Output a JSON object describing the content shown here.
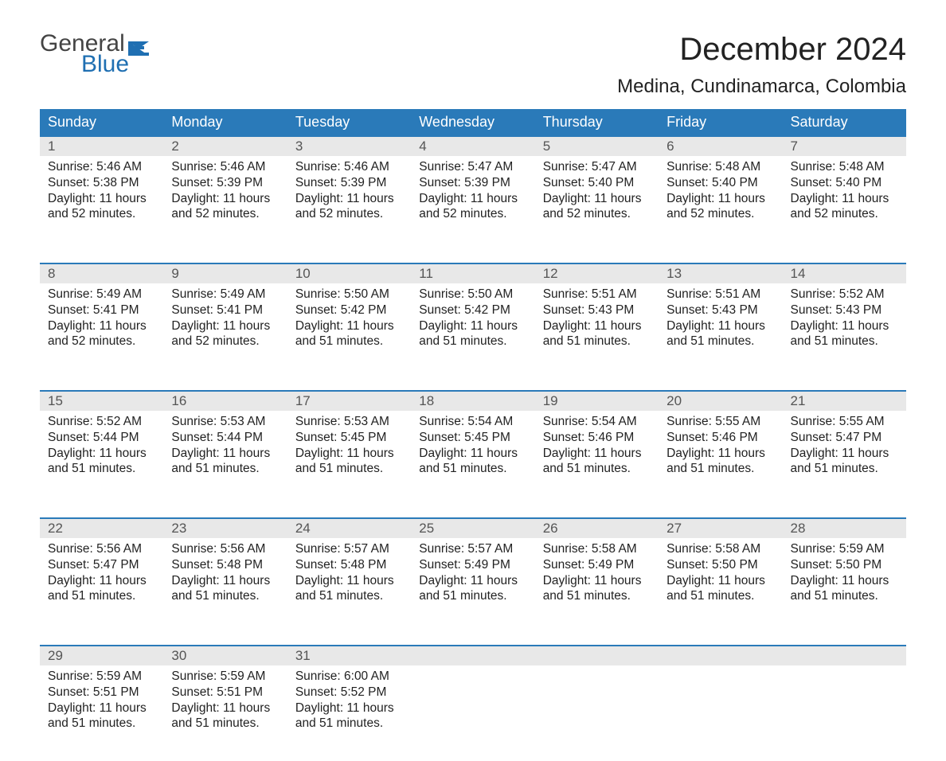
{
  "logo": {
    "text_general": "General",
    "text_blue": "Blue",
    "flag_color": "#1f6fb2"
  },
  "title": "December 2024",
  "location": "Medina, Cundinamarca, Colombia",
  "colors": {
    "header_bg": "#2a7ab9",
    "header_text": "#ffffff",
    "daynum_bg": "#e8e8e8",
    "daynum_text": "#555555",
    "body_text": "#222222",
    "week_border": "#2a7ab9",
    "page_bg": "#ffffff",
    "logo_gray": "#444444",
    "logo_blue": "#1f6fb2"
  },
  "typography": {
    "title_fontsize": 40,
    "location_fontsize": 24,
    "dow_fontsize": 18,
    "daynum_fontsize": 17,
    "body_fontsize": 15.5,
    "logo_fontsize": 30
  },
  "days_of_week": [
    "Sunday",
    "Monday",
    "Tuesday",
    "Wednesday",
    "Thursday",
    "Friday",
    "Saturday"
  ],
  "weeks": [
    [
      {
        "num": "1",
        "sunrise": "Sunrise: 5:46 AM",
        "sunset": "Sunset: 5:38 PM",
        "daylight1": "Daylight: 11 hours",
        "daylight2": "and 52 minutes."
      },
      {
        "num": "2",
        "sunrise": "Sunrise: 5:46 AM",
        "sunset": "Sunset: 5:39 PM",
        "daylight1": "Daylight: 11 hours",
        "daylight2": "and 52 minutes."
      },
      {
        "num": "3",
        "sunrise": "Sunrise: 5:46 AM",
        "sunset": "Sunset: 5:39 PM",
        "daylight1": "Daylight: 11 hours",
        "daylight2": "and 52 minutes."
      },
      {
        "num": "4",
        "sunrise": "Sunrise: 5:47 AM",
        "sunset": "Sunset: 5:39 PM",
        "daylight1": "Daylight: 11 hours",
        "daylight2": "and 52 minutes."
      },
      {
        "num": "5",
        "sunrise": "Sunrise: 5:47 AM",
        "sunset": "Sunset: 5:40 PM",
        "daylight1": "Daylight: 11 hours",
        "daylight2": "and 52 minutes."
      },
      {
        "num": "6",
        "sunrise": "Sunrise: 5:48 AM",
        "sunset": "Sunset: 5:40 PM",
        "daylight1": "Daylight: 11 hours",
        "daylight2": "and 52 minutes."
      },
      {
        "num": "7",
        "sunrise": "Sunrise: 5:48 AM",
        "sunset": "Sunset: 5:40 PM",
        "daylight1": "Daylight: 11 hours",
        "daylight2": "and 52 minutes."
      }
    ],
    [
      {
        "num": "8",
        "sunrise": "Sunrise: 5:49 AM",
        "sunset": "Sunset: 5:41 PM",
        "daylight1": "Daylight: 11 hours",
        "daylight2": "and 52 minutes."
      },
      {
        "num": "9",
        "sunrise": "Sunrise: 5:49 AM",
        "sunset": "Sunset: 5:41 PM",
        "daylight1": "Daylight: 11 hours",
        "daylight2": "and 52 minutes."
      },
      {
        "num": "10",
        "sunrise": "Sunrise: 5:50 AM",
        "sunset": "Sunset: 5:42 PM",
        "daylight1": "Daylight: 11 hours",
        "daylight2": "and 51 minutes."
      },
      {
        "num": "11",
        "sunrise": "Sunrise: 5:50 AM",
        "sunset": "Sunset: 5:42 PM",
        "daylight1": "Daylight: 11 hours",
        "daylight2": "and 51 minutes."
      },
      {
        "num": "12",
        "sunrise": "Sunrise: 5:51 AM",
        "sunset": "Sunset: 5:43 PM",
        "daylight1": "Daylight: 11 hours",
        "daylight2": "and 51 minutes."
      },
      {
        "num": "13",
        "sunrise": "Sunrise: 5:51 AM",
        "sunset": "Sunset: 5:43 PM",
        "daylight1": "Daylight: 11 hours",
        "daylight2": "and 51 minutes."
      },
      {
        "num": "14",
        "sunrise": "Sunrise: 5:52 AM",
        "sunset": "Sunset: 5:43 PM",
        "daylight1": "Daylight: 11 hours",
        "daylight2": "and 51 minutes."
      }
    ],
    [
      {
        "num": "15",
        "sunrise": "Sunrise: 5:52 AM",
        "sunset": "Sunset: 5:44 PM",
        "daylight1": "Daylight: 11 hours",
        "daylight2": "and 51 minutes."
      },
      {
        "num": "16",
        "sunrise": "Sunrise: 5:53 AM",
        "sunset": "Sunset: 5:44 PM",
        "daylight1": "Daylight: 11 hours",
        "daylight2": "and 51 minutes."
      },
      {
        "num": "17",
        "sunrise": "Sunrise: 5:53 AM",
        "sunset": "Sunset: 5:45 PM",
        "daylight1": "Daylight: 11 hours",
        "daylight2": "and 51 minutes."
      },
      {
        "num": "18",
        "sunrise": "Sunrise: 5:54 AM",
        "sunset": "Sunset: 5:45 PM",
        "daylight1": "Daylight: 11 hours",
        "daylight2": "and 51 minutes."
      },
      {
        "num": "19",
        "sunrise": "Sunrise: 5:54 AM",
        "sunset": "Sunset: 5:46 PM",
        "daylight1": "Daylight: 11 hours",
        "daylight2": "and 51 minutes."
      },
      {
        "num": "20",
        "sunrise": "Sunrise: 5:55 AM",
        "sunset": "Sunset: 5:46 PM",
        "daylight1": "Daylight: 11 hours",
        "daylight2": "and 51 minutes."
      },
      {
        "num": "21",
        "sunrise": "Sunrise: 5:55 AM",
        "sunset": "Sunset: 5:47 PM",
        "daylight1": "Daylight: 11 hours",
        "daylight2": "and 51 minutes."
      }
    ],
    [
      {
        "num": "22",
        "sunrise": "Sunrise: 5:56 AM",
        "sunset": "Sunset: 5:47 PM",
        "daylight1": "Daylight: 11 hours",
        "daylight2": "and 51 minutes."
      },
      {
        "num": "23",
        "sunrise": "Sunrise: 5:56 AM",
        "sunset": "Sunset: 5:48 PM",
        "daylight1": "Daylight: 11 hours",
        "daylight2": "and 51 minutes."
      },
      {
        "num": "24",
        "sunrise": "Sunrise: 5:57 AM",
        "sunset": "Sunset: 5:48 PM",
        "daylight1": "Daylight: 11 hours",
        "daylight2": "and 51 minutes."
      },
      {
        "num": "25",
        "sunrise": "Sunrise: 5:57 AM",
        "sunset": "Sunset: 5:49 PM",
        "daylight1": "Daylight: 11 hours",
        "daylight2": "and 51 minutes."
      },
      {
        "num": "26",
        "sunrise": "Sunrise: 5:58 AM",
        "sunset": "Sunset: 5:49 PM",
        "daylight1": "Daylight: 11 hours",
        "daylight2": "and 51 minutes."
      },
      {
        "num": "27",
        "sunrise": "Sunrise: 5:58 AM",
        "sunset": "Sunset: 5:50 PM",
        "daylight1": "Daylight: 11 hours",
        "daylight2": "and 51 minutes."
      },
      {
        "num": "28",
        "sunrise": "Sunrise: 5:59 AM",
        "sunset": "Sunset: 5:50 PM",
        "daylight1": "Daylight: 11 hours",
        "daylight2": "and 51 minutes."
      }
    ],
    [
      {
        "num": "29",
        "sunrise": "Sunrise: 5:59 AM",
        "sunset": "Sunset: 5:51 PM",
        "daylight1": "Daylight: 11 hours",
        "daylight2": "and 51 minutes."
      },
      {
        "num": "30",
        "sunrise": "Sunrise: 5:59 AM",
        "sunset": "Sunset: 5:51 PM",
        "daylight1": "Daylight: 11 hours",
        "daylight2": "and 51 minutes."
      },
      {
        "num": "31",
        "sunrise": "Sunrise: 6:00 AM",
        "sunset": "Sunset: 5:52 PM",
        "daylight1": "Daylight: 11 hours",
        "daylight2": "and 51 minutes."
      },
      null,
      null,
      null,
      null
    ]
  ]
}
